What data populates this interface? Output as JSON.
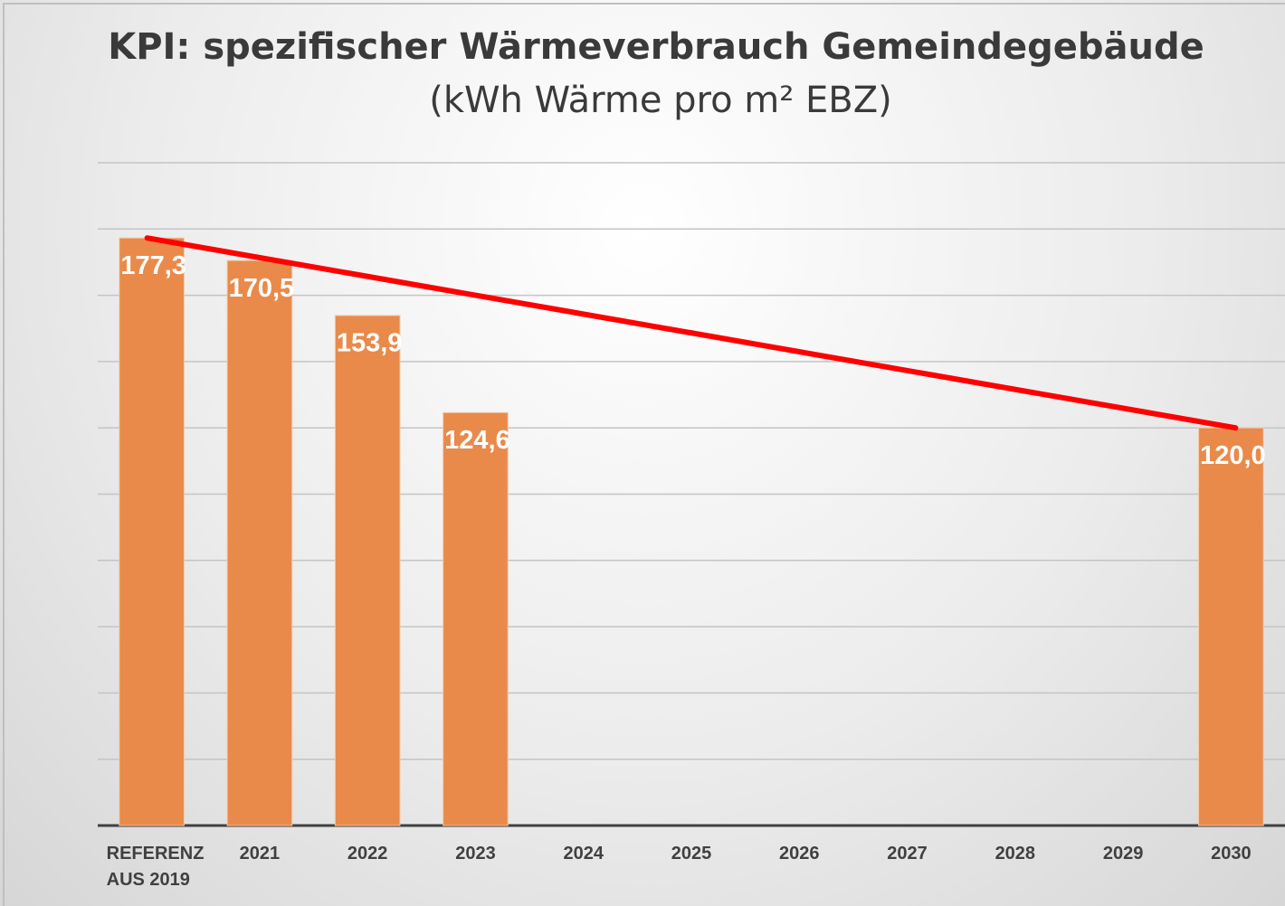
{
  "chart_data": {
    "type": "bar",
    "title": "KPI: spezifischer Wärmeverbrauch Gemeindegebäude",
    "subtitle": "(kWh Wärme pro m² EBZ)",
    "categories": [
      "REFERENZ AUS 2019",
      "2021",
      "2022",
      "2023",
      "2024",
      "2025",
      "2026",
      "2027",
      "2028",
      "2029",
      "2030"
    ],
    "values": [
      177.3,
      170.5,
      153.9,
      124.6,
      null,
      null,
      null,
      null,
      null,
      null,
      120.0
    ],
    "value_labels": [
      "177,3",
      "170,5",
      "153,9",
      "124,6",
      null,
      null,
      null,
      null,
      null,
      null,
      "120,0"
    ],
    "color": "#e98a4a",
    "line_color": "#ff0000",
    "ylim": [
      0,
      200
    ],
    "yticks": [
      0,
      20,
      40,
      60,
      80,
      100,
      120,
      140,
      160,
      180,
      200
    ],
    "grid": true
  }
}
